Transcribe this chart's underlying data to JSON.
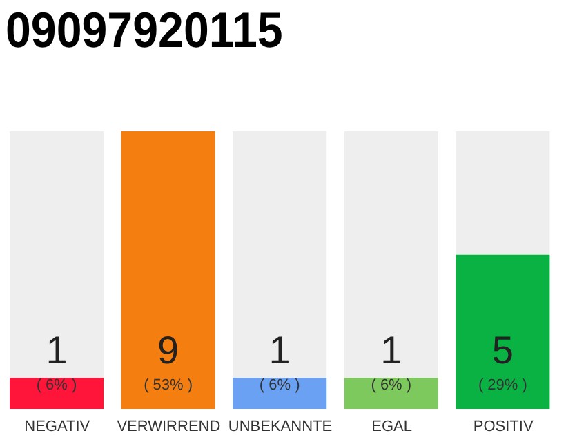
{
  "chart_data": {
    "type": "bar",
    "title": "09097920115",
    "categories": [
      "NEGATIV",
      "VERWIRREND",
      "UNBEKANNTE",
      "EGAL",
      "POSITIV"
    ],
    "values": [
      1,
      9,
      1,
      1,
      5
    ],
    "colors": [
      "#ff1539",
      "#f47f10",
      "#6ba1f2",
      "#7dc95d",
      "#0ab244"
    ],
    "data_labels": true,
    "annotations": [
      "( 6% )",
      "( 53% )",
      "( 6% )",
      "( 6% )",
      "( 29% )"
    ],
    "tick_labels": "x",
    "grid": false,
    "legend": false
  }
}
